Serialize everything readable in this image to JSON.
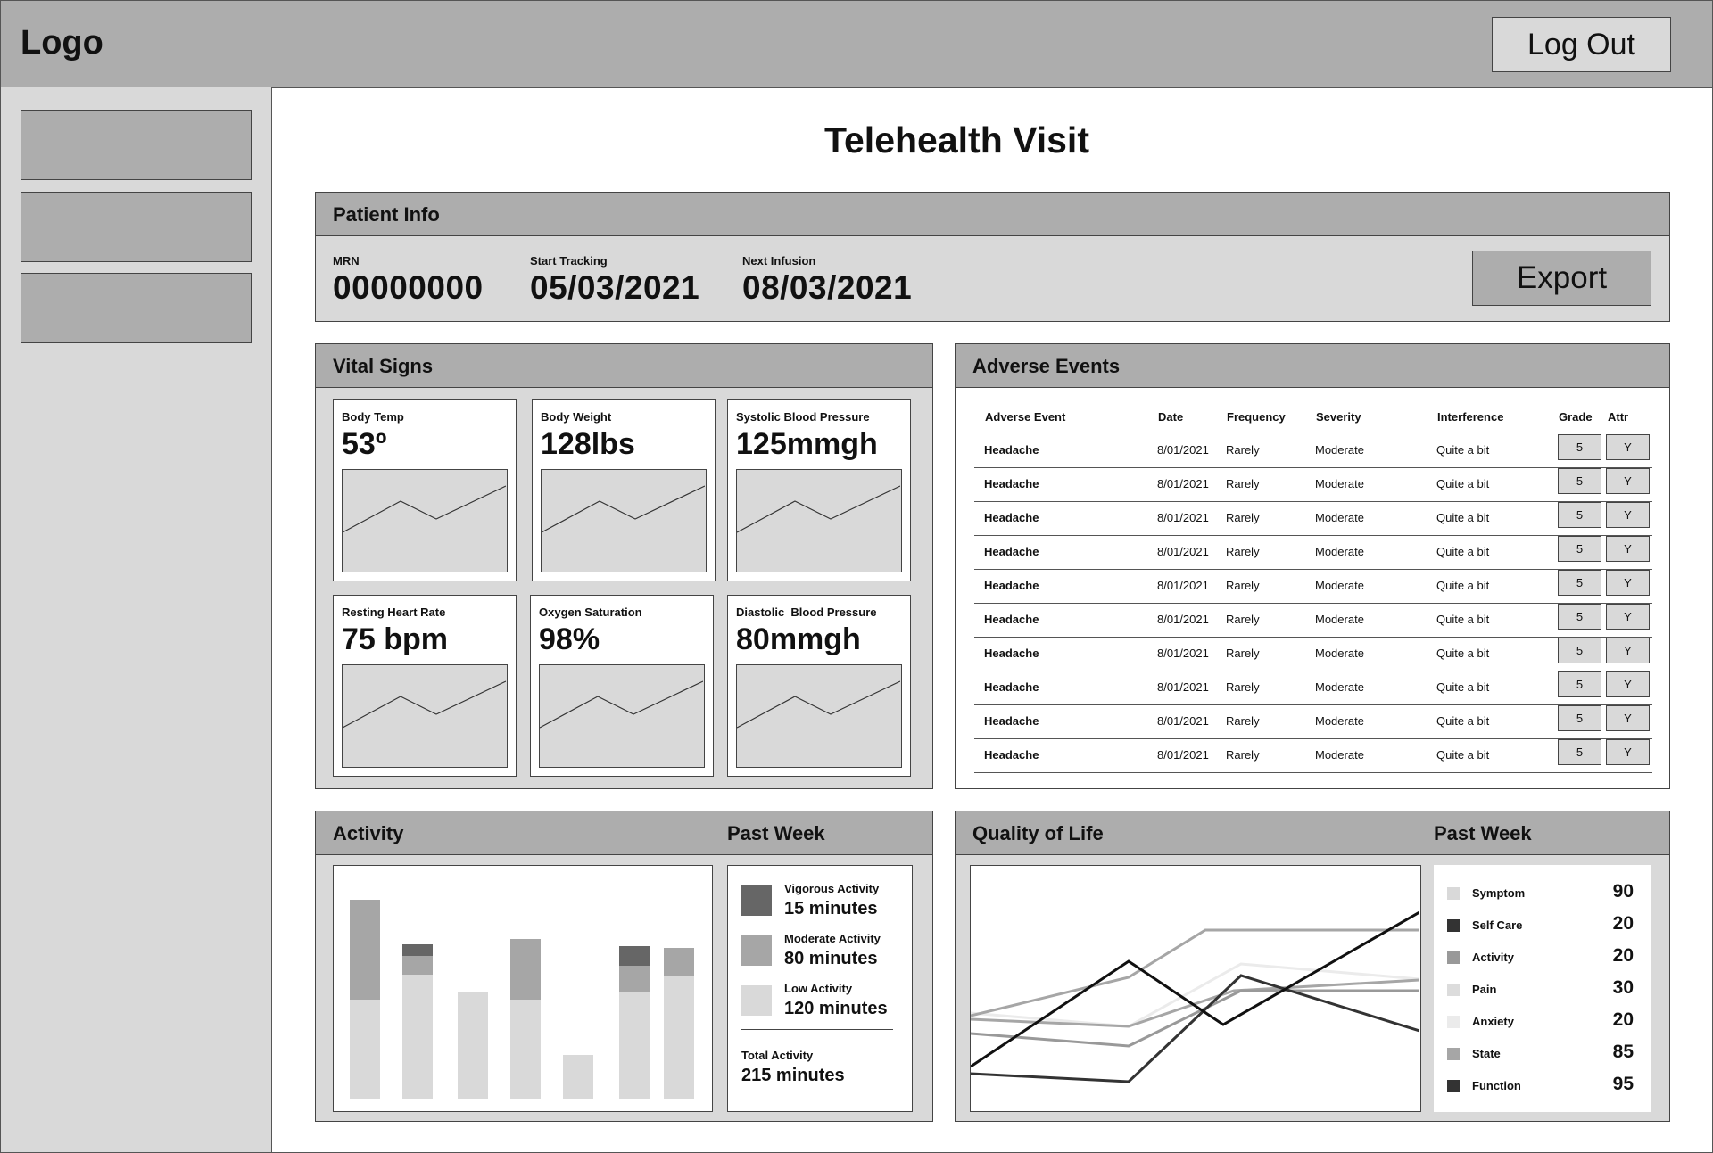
{
  "header": {
    "logo": "Logo",
    "logout_label": "Log Out"
  },
  "page_title": "Telehealth Visit",
  "patient_info": {
    "title": "Patient Info",
    "fields": [
      {
        "label": "MRN",
        "value": "00000000"
      },
      {
        "label": "Start Tracking",
        "value": "05/03/2021"
      },
      {
        "label": "Next Infusion",
        "value": "08/03/2021"
      }
    ],
    "export_label": "Export"
  },
  "vital_signs": {
    "title": "Vital Signs",
    "cards": [
      {
        "label": "Body Temp",
        "value": "53º"
      },
      {
        "label": "Body Weight",
        "value": "128lbs"
      },
      {
        "label": "Systolic Blood Pressure",
        "value": "125mmgh"
      },
      {
        "label": "Resting Heart Rate",
        "value": "75 bpm"
      },
      {
        "label": "Oxygen Saturation",
        "value": "98%"
      },
      {
        "label": "Diastolic  Blood Pressure",
        "value": "80mmgh"
      }
    ]
  },
  "adverse_events": {
    "title": "Adverse Events",
    "columns": [
      "Adverse Event",
      "Date",
      "Frequency",
      "Severity",
      "Interference",
      "Grade",
      "Attr"
    ],
    "rows": [
      {
        "event": "Headache",
        "date": "8/01/2021",
        "frequency": "Rarely",
        "severity": "Moderate",
        "interference": "Quite a bit",
        "grade": "5",
        "attr": "Y"
      },
      {
        "event": "Headache",
        "date": "8/01/2021",
        "frequency": "Rarely",
        "severity": "Moderate",
        "interference": "Quite a bit",
        "grade": "5",
        "attr": "Y"
      },
      {
        "event": "Headache",
        "date": "8/01/2021",
        "frequency": "Rarely",
        "severity": "Moderate",
        "interference": "Quite a bit",
        "grade": "5",
        "attr": "Y"
      },
      {
        "event": "Headache",
        "date": "8/01/2021",
        "frequency": "Rarely",
        "severity": "Moderate",
        "interference": "Quite a bit",
        "grade": "5",
        "attr": "Y"
      },
      {
        "event": "Headache",
        "date": "8/01/2021",
        "frequency": "Rarely",
        "severity": "Moderate",
        "interference": "Quite a bit",
        "grade": "5",
        "attr": "Y"
      },
      {
        "event": "Headache",
        "date": "8/01/2021",
        "frequency": "Rarely",
        "severity": "Moderate",
        "interference": "Quite a bit",
        "grade": "5",
        "attr": "Y"
      },
      {
        "event": "Headache",
        "date": "8/01/2021",
        "frequency": "Rarely",
        "severity": "Moderate",
        "interference": "Quite a bit",
        "grade": "5",
        "attr": "Y"
      },
      {
        "event": "Headache",
        "date": "8/01/2021",
        "frequency": "Rarely",
        "severity": "Moderate",
        "interference": "Quite a bit",
        "grade": "5",
        "attr": "Y"
      },
      {
        "event": "Headache",
        "date": "8/01/2021",
        "frequency": "Rarely",
        "severity": "Moderate",
        "interference": "Quite a bit",
        "grade": "5",
        "attr": "Y"
      },
      {
        "event": "Headache",
        "date": "8/01/2021",
        "frequency": "Rarely",
        "severity": "Moderate",
        "interference": "Quite a bit",
        "grade": "5",
        "attr": "Y"
      }
    ]
  },
  "activity": {
    "title": "Activity",
    "period": "Past Week",
    "legend": [
      {
        "label": "Vigorous Activity",
        "value": "15 minutes",
        "color": "#666666"
      },
      {
        "label": "Moderate Activity",
        "value": "80 minutes",
        "color": "#a6a6a6"
      },
      {
        "label": "Low Activity",
        "value": "120 minutes",
        "color": "#d9d9d9"
      }
    ],
    "total_label": "Total Activity",
    "total_value": "215 minutes"
  },
  "quality_of_life": {
    "title": "Quality of Life",
    "period": "Past Week",
    "items": [
      {
        "label": "Symptom",
        "value": "90",
        "color": "#d9d9d9"
      },
      {
        "label": "Self Care",
        "value": "20",
        "color": "#333333"
      },
      {
        "label": "Activity",
        "value": "20",
        "color": "#999999"
      },
      {
        "label": "Pain",
        "value": "30",
        "color": "#dcdcdc"
      },
      {
        "label": "Anxiety",
        "value": "20",
        "color": "#ebebeb"
      },
      {
        "label": "State",
        "value": "85",
        "color": "#a6a6a6"
      },
      {
        "label": "Function",
        "value": "95",
        "color": "#333333"
      }
    ]
  }
}
